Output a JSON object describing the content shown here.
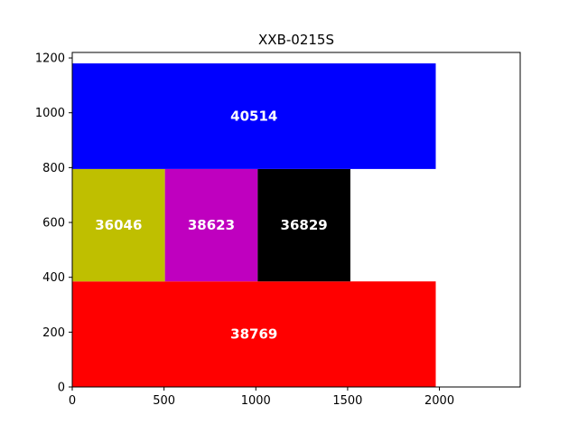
{
  "chart_data": {
    "type": "treemap",
    "title": "XXB-0215S",
    "xlabel": "",
    "ylabel": "",
    "xlim": [
      0,
      2440
    ],
    "ylim": [
      0,
      1220
    ],
    "x_ticks": [
      0,
      500,
      1000,
      1500,
      2000
    ],
    "y_ticks": [
      0,
      200,
      400,
      600,
      800,
      1000,
      1200
    ],
    "grid": false,
    "legend": "none",
    "rects": [
      {
        "label": "38769",
        "x": 0,
        "y": 0,
        "width": 1980,
        "height": 385,
        "color": "#ff0000"
      },
      {
        "label": "36046",
        "x": 0,
        "y": 385,
        "width": 505,
        "height": 410,
        "color": "#bfbf00"
      },
      {
        "label": "38623",
        "x": 505,
        "y": 385,
        "width": 505,
        "height": 410,
        "color": "#bf00bf"
      },
      {
        "label": "36829",
        "x": 1010,
        "y": 385,
        "width": 505,
        "height": 410,
        "color": "#000000"
      },
      {
        "label": "40514",
        "x": 0,
        "y": 795,
        "width": 1980,
        "height": 385,
        "color": "#0000ff"
      }
    ]
  }
}
